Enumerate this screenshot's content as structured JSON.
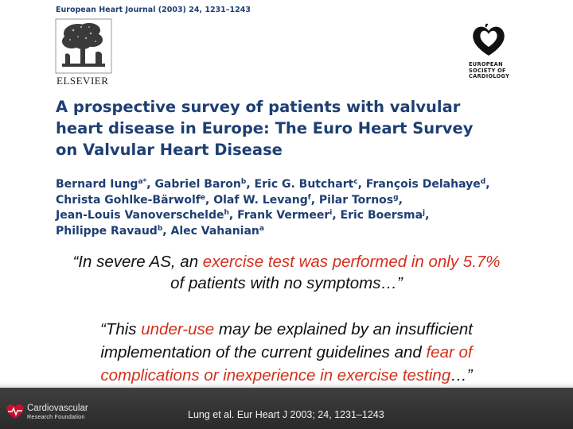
{
  "journal_header": "European Heart Journal (2003) 24, 1231–1243",
  "publisher_name": "ELSEVIER",
  "society_name": [
    "EUROPEAN",
    "SOCIETY OF",
    "CARDIOLOGY"
  ],
  "title_lines": [
    "A prospective survey of patients with valvular",
    "heart disease in Europe: The Euro Heart Survey",
    "on Valvular Heart Disease"
  ],
  "authors": [
    {
      "name": "Bernard Iung",
      "sup": "a*",
      "sep": ", "
    },
    {
      "name": "Gabriel Baron",
      "sup": "b",
      "sep": ", "
    },
    {
      "name": "Eric G. Butchart",
      "sup": "c",
      "sep": ", "
    },
    {
      "name": "François Delahaye",
      "sup": "d",
      "sep": ","
    },
    {
      "name": "Christa Gohlke-Bärwolf",
      "sup": "e",
      "sep": ", "
    },
    {
      "name": "Olaf W. Levang",
      "sup": "f",
      "sep": ", "
    },
    {
      "name": "Pilar Tornos",
      "sup": "g",
      "sep": ","
    },
    {
      "name": "Jean-Louis Vanoverschelde",
      "sup": "h",
      "sep": ", "
    },
    {
      "name": "Frank Vermeer",
      "sup": "i",
      "sep": ", "
    },
    {
      "name": "Eric Boersma",
      "sup": "j",
      "sep": ","
    },
    {
      "name": "Philippe Ravaud",
      "sup": "b",
      "sep": ", "
    },
    {
      "name": "Alec Vahanian",
      "sup": "a",
      "sep": ""
    }
  ],
  "quote1": {
    "l1_a": "“In severe AS, an ",
    "l1_hl": "exercise test was performed in only 5.7%",
    "l2": "of patients with no symptoms…”"
  },
  "quote2": {
    "l1_a": "“This ",
    "l1_hl": "under-use",
    "l1_b": " may be explained by an insufficient",
    "l2_a": "implementation of the current guidelines and ",
    "l2_hl": "fear of",
    "l3_hl": "complications or inexperience in exercise testing",
    "l3_b": "…”"
  },
  "footer": {
    "org_line1": "Cardiovascular",
    "org_line2": "Research Foundation",
    "citation": "Lung et al. Eur Heart J 2003; 24, 1231–1243"
  },
  "colors": {
    "title_blue": "#1e3f73",
    "highlight_red": "#d4301c",
    "footer_band": "#333333",
    "crf_red": "#c8102e"
  },
  "icons": [
    "elsevier-tree-logo",
    "esc-heart-logo",
    "crf-heart-logo"
  ]
}
